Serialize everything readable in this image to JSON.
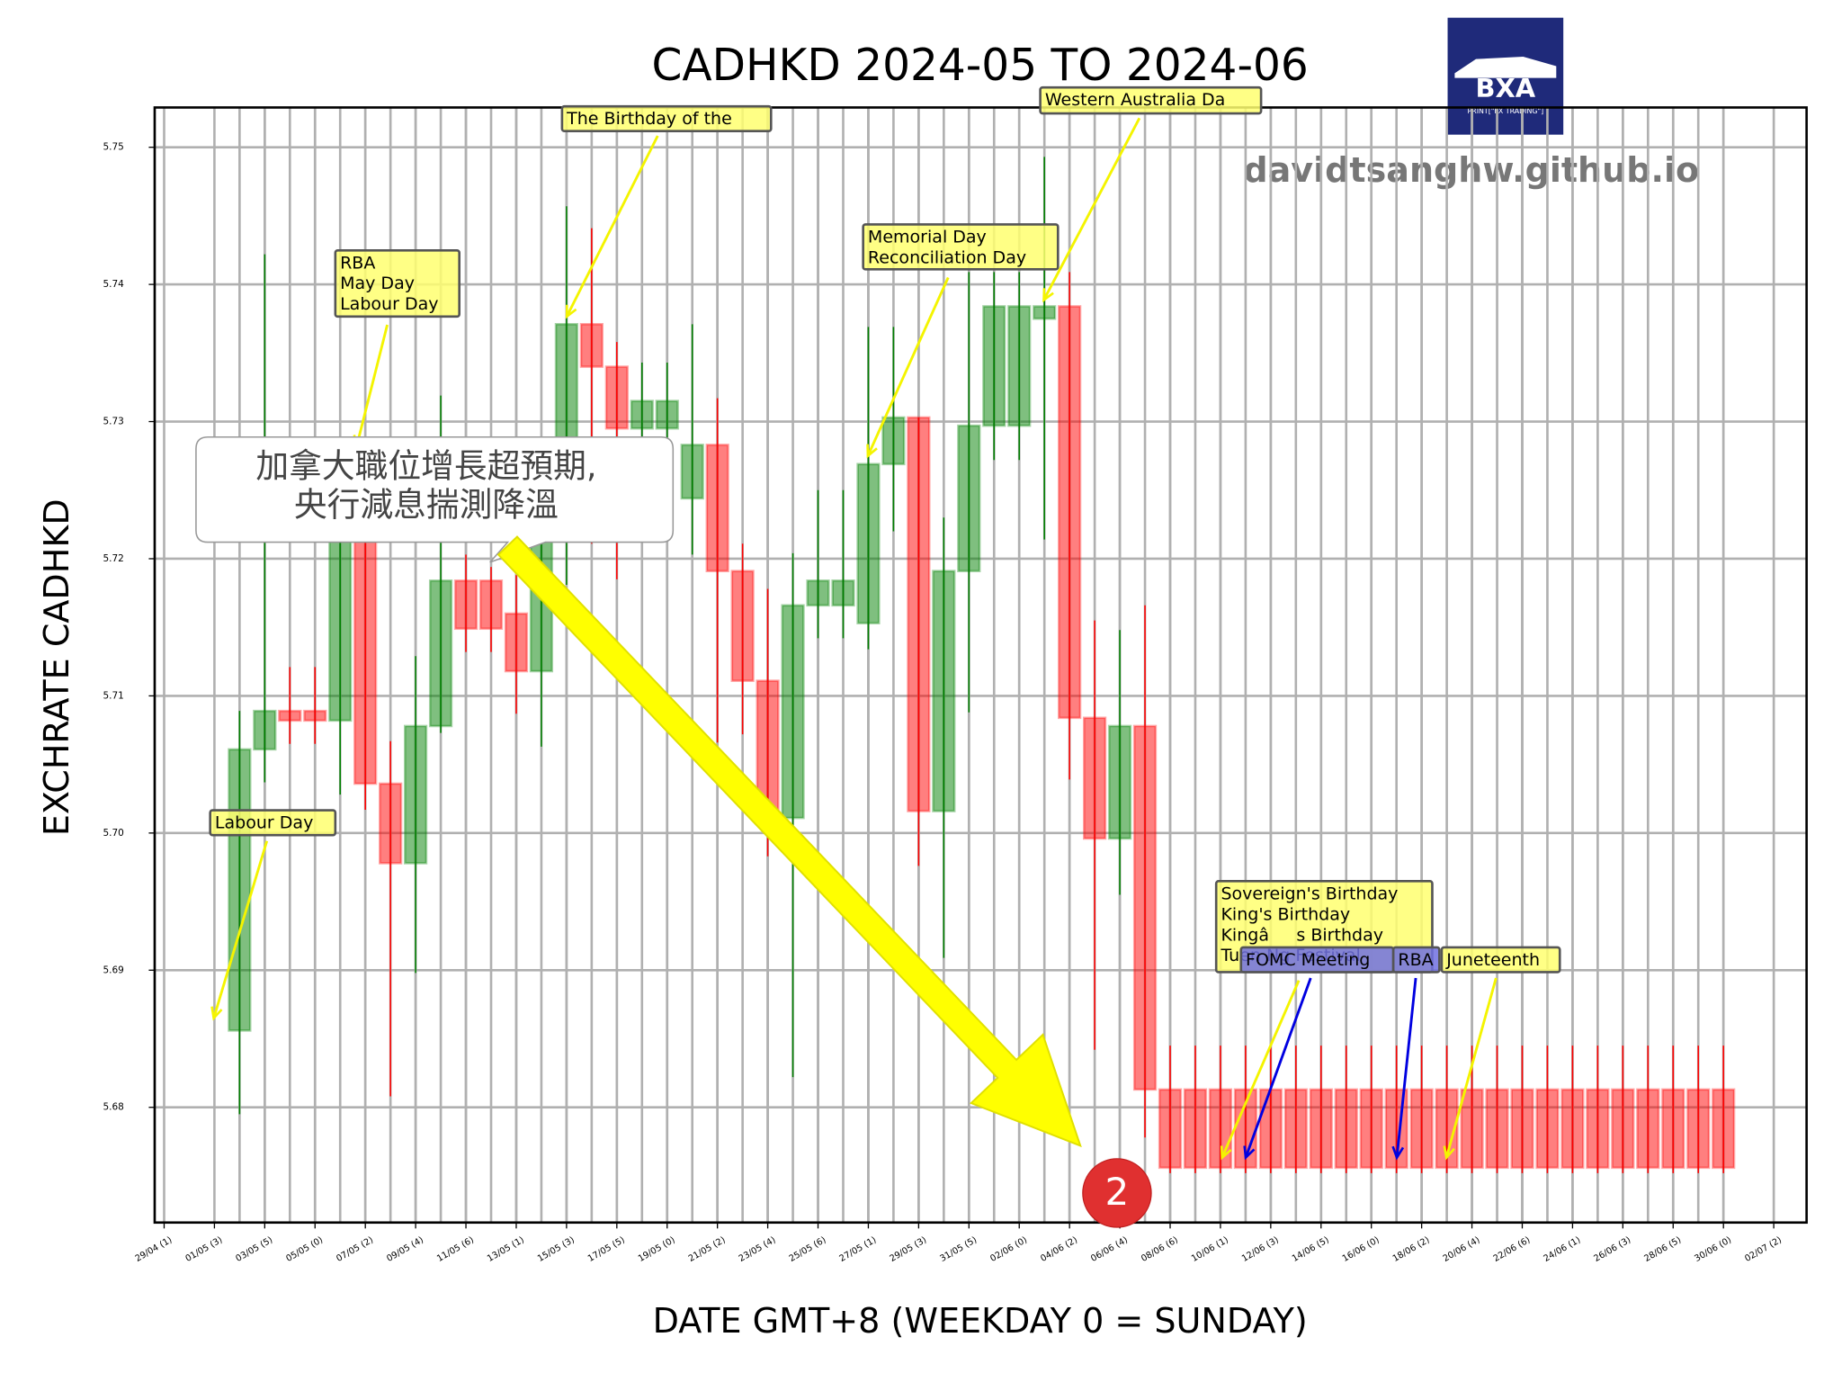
{
  "chart_data": {
    "type": "candlestick",
    "title": "CADHKD 2024-05 TO 2024-06",
    "x_label": "DATE GMT+8 (WEEKDAY 0 = SUNDAY)",
    "y_label": "EXCHRATE CADHKD",
    "up_color": "green",
    "down_color": "red",
    "grid": true,
    "ylim": [
      5.6716,
      5.7529
    ],
    "yticks": [
      5.68,
      5.69,
      {
        "value": 5.7,
        "label": "5.70"
      },
      5.71,
      5.72,
      5.73,
      5.74,
      5.75
    ],
    "xticks": [
      "29/04 (1)",
      "01/05 (3)",
      "03/05 (5)",
      "05/05 (0)",
      "07/05 (2)",
      "09/05 (4)",
      "11/05 (6)",
      "13/05 (1)",
      "15/05 (3)",
      "17/05 (5)",
      "19/05 (0)",
      "21/05 (2)",
      "23/05 (4)",
      "25/05 (6)",
      "27/05 (1)",
      "29/05 (3)",
      "31/05 (5)",
      "02/06 (0)",
      "04/06 (2)",
      "06/06 (4)",
      "08/06 (6)",
      "10/06 (1)",
      "12/06 (3)",
      "14/06 (5)",
      "16/06 (0)",
      "18/06 (2)",
      "20/06 (4)",
      "22/06 (6)",
      "24/06 (1)",
      "26/06 (3)",
      "28/06 (5)",
      "30/06 (0)",
      "02/07 (2)"
    ],
    "x": [
      "02/05",
      "03/05",
      "04/05",
      "05/05",
      "06/05",
      "07/05",
      "08/05",
      "09/05",
      "10/05",
      "11/05",
      "12/05",
      "13/05",
      "14/05",
      "15/05",
      "16/05",
      "17/05",
      "18/05",
      "19/05",
      "20/05",
      "21/05",
      "22/05",
      "23/05",
      "24/05",
      "25/05",
      "26/05",
      "27/05",
      "28/05",
      "29/05",
      "30/05",
      "31/05",
      "01/06",
      "02/06",
      "03/06",
      "04/06",
      "05/06",
      "06/06",
      "07/06",
      "08/06",
      "09/06",
      "10/06",
      "11/06",
      "12/06",
      "13/06",
      "14/06",
      "15/06",
      "16/06",
      "17/06",
      "18/06",
      "19/06",
      "20/06",
      "21/06",
      "22/06",
      "23/06",
      "24/06",
      "25/06",
      "26/06",
      "27/06",
      "28/06",
      "29/06",
      "30/06"
    ],
    "open": [
      5.6856,
      5.7061,
      5.7089,
      5.7089,
      5.7082,
      5.7228,
      5.7036,
      5.6978,
      5.7078,
      5.7184,
      5.7184,
      5.716,
      5.7118,
      5.7216,
      5.7371,
      5.734,
      5.7295,
      5.7295,
      5.7244,
      5.7283,
      5.7191,
      5.7111,
      5.7011,
      5.7166,
      5.7166,
      5.7153,
      5.7269,
      5.7303,
      5.7016,
      5.7191,
      5.7297,
      5.7297,
      5.7375,
      5.7384,
      5.7084,
      5.6996,
      5.7078,
      5.6813,
      5.6813,
      5.6813,
      5.6813,
      5.6813,
      5.6813,
      5.6813,
      5.6813,
      5.6813,
      5.6813,
      5.6813,
      5.6813,
      5.6813,
      5.6813,
      5.6813,
      5.6813,
      5.6813,
      5.6813,
      5.6813,
      5.6813,
      5.6813,
      5.6813,
      5.6813
    ],
    "high": [
      5.7089,
      5.7422,
      5.7121,
      5.7121,
      5.7265,
      5.7265,
      5.7067,
      5.7129,
      5.7319,
      5.7203,
      5.7194,
      5.7188,
      5.7238,
      5.7457,
      5.7441,
      5.7358,
      5.7343,
      5.7343,
      5.7371,
      5.7317,
      5.7211,
      5.7178,
      5.7204,
      5.725,
      5.725,
      5.7369,
      5.7369,
      5.7303,
      5.723,
      5.7409,
      5.7409,
      5.7409,
      5.7493,
      5.7409,
      5.7155,
      5.7148,
      5.7166,
      5.6845,
      5.6845,
      5.6845,
      5.6845,
      5.6845,
      5.6845,
      5.6845,
      5.6845,
      5.6845,
      5.6845,
      5.6845,
      5.6845,
      5.6845,
      5.6845,
      5.6845,
      5.6845,
      5.6845,
      5.6845,
      5.6845,
      5.6845,
      5.6845,
      5.6845,
      5.6845
    ],
    "low": [
      5.6795,
      5.7037,
      5.7065,
      5.7065,
      5.7028,
      5.7017,
      5.6808,
      5.6898,
      5.7073,
      5.7132,
      5.7132,
      5.7087,
      5.7063,
      5.7181,
      5.7211,
      5.7185,
      5.7282,
      5.7282,
      5.7203,
      5.7066,
      5.7072,
      5.6983,
      5.6822,
      5.7142,
      5.7142,
      5.7134,
      5.722,
      5.6976,
      5.6909,
      5.7088,
      5.7272,
      5.7272,
      5.7214,
      5.7039,
      5.6842,
      5.6955,
      5.6778,
      5.6752,
      5.6752,
      5.6752,
      5.6752,
      5.6752,
      5.6752,
      5.6752,
      5.6752,
      5.6752,
      5.6752,
      5.6752,
      5.6752,
      5.6752,
      5.6752,
      5.6752,
      5.6752,
      5.6752,
      5.6752,
      5.6752,
      5.6752,
      5.6752,
      5.6752,
      5.6752
    ],
    "close": [
      5.7061,
      5.7089,
      5.7082,
      5.7082,
      5.7228,
      5.7036,
      5.6978,
      5.7078,
      5.7184,
      5.7149,
      5.7149,
      5.7118,
      5.7216,
      5.7371,
      5.734,
      5.7295,
      5.7315,
      5.7315,
      5.7283,
      5.7191,
      5.7111,
      5.7011,
      5.7166,
      5.7184,
      5.7184,
      5.7269,
      5.7303,
      5.7016,
      5.7191,
      5.7297,
      5.7384,
      5.7384,
      5.7384,
      5.7084,
      5.6996,
      5.7078,
      5.6813,
      5.6756,
      5.6756,
      5.6756,
      5.6756,
      5.6756,
      5.6756,
      5.6756,
      5.6756,
      5.6756,
      5.6756,
      5.6756,
      5.6756,
      5.6756,
      5.6756,
      5.6756,
      5.6756,
      5.6756,
      5.6756,
      5.6756,
      5.6756,
      5.6756,
      5.6756,
      5.6756
    ],
    "annotations": [
      {
        "lines": [
          "Labour Day"
        ],
        "color": "yellow"
      },
      {
        "lines": [
          "RBA",
          "May Day",
          "Labour Day"
        ],
        "color": "yellow"
      },
      {
        "lines": [
          "The Birthday of the"
        ],
        "color": "yellow"
      },
      {
        "lines": [
          "Memorial Day",
          "Reconciliation Day"
        ],
        "color": "yellow"
      },
      {
        "lines": [
          "Western Australia Da"
        ],
        "color": "yellow"
      },
      {
        "lines": [
          "Sovereign's Birthday",
          "King's Birthday",
          "Kingâs Birthday",
          "Tuen Ng Festival"
        ],
        "color": "yellow"
      },
      {
        "lines": [
          "FOMC Meeting"
        ],
        "color": "blue"
      },
      {
        "lines": [
          "RBA"
        ],
        "color": "blue"
      },
      {
        "lines": [
          "Juneteenth"
        ],
        "color": "yellow"
      }
    ],
    "callout": [
      "加拿大職位增長超預期,",
      "央行減息揣測降溫"
    ],
    "watermark": "davidtsanghw.github.io",
    "logo": {
      "title": "BXA",
      "subtitle": "PRINT[\"FX TRADING\"]"
    },
    "badge": "2"
  }
}
